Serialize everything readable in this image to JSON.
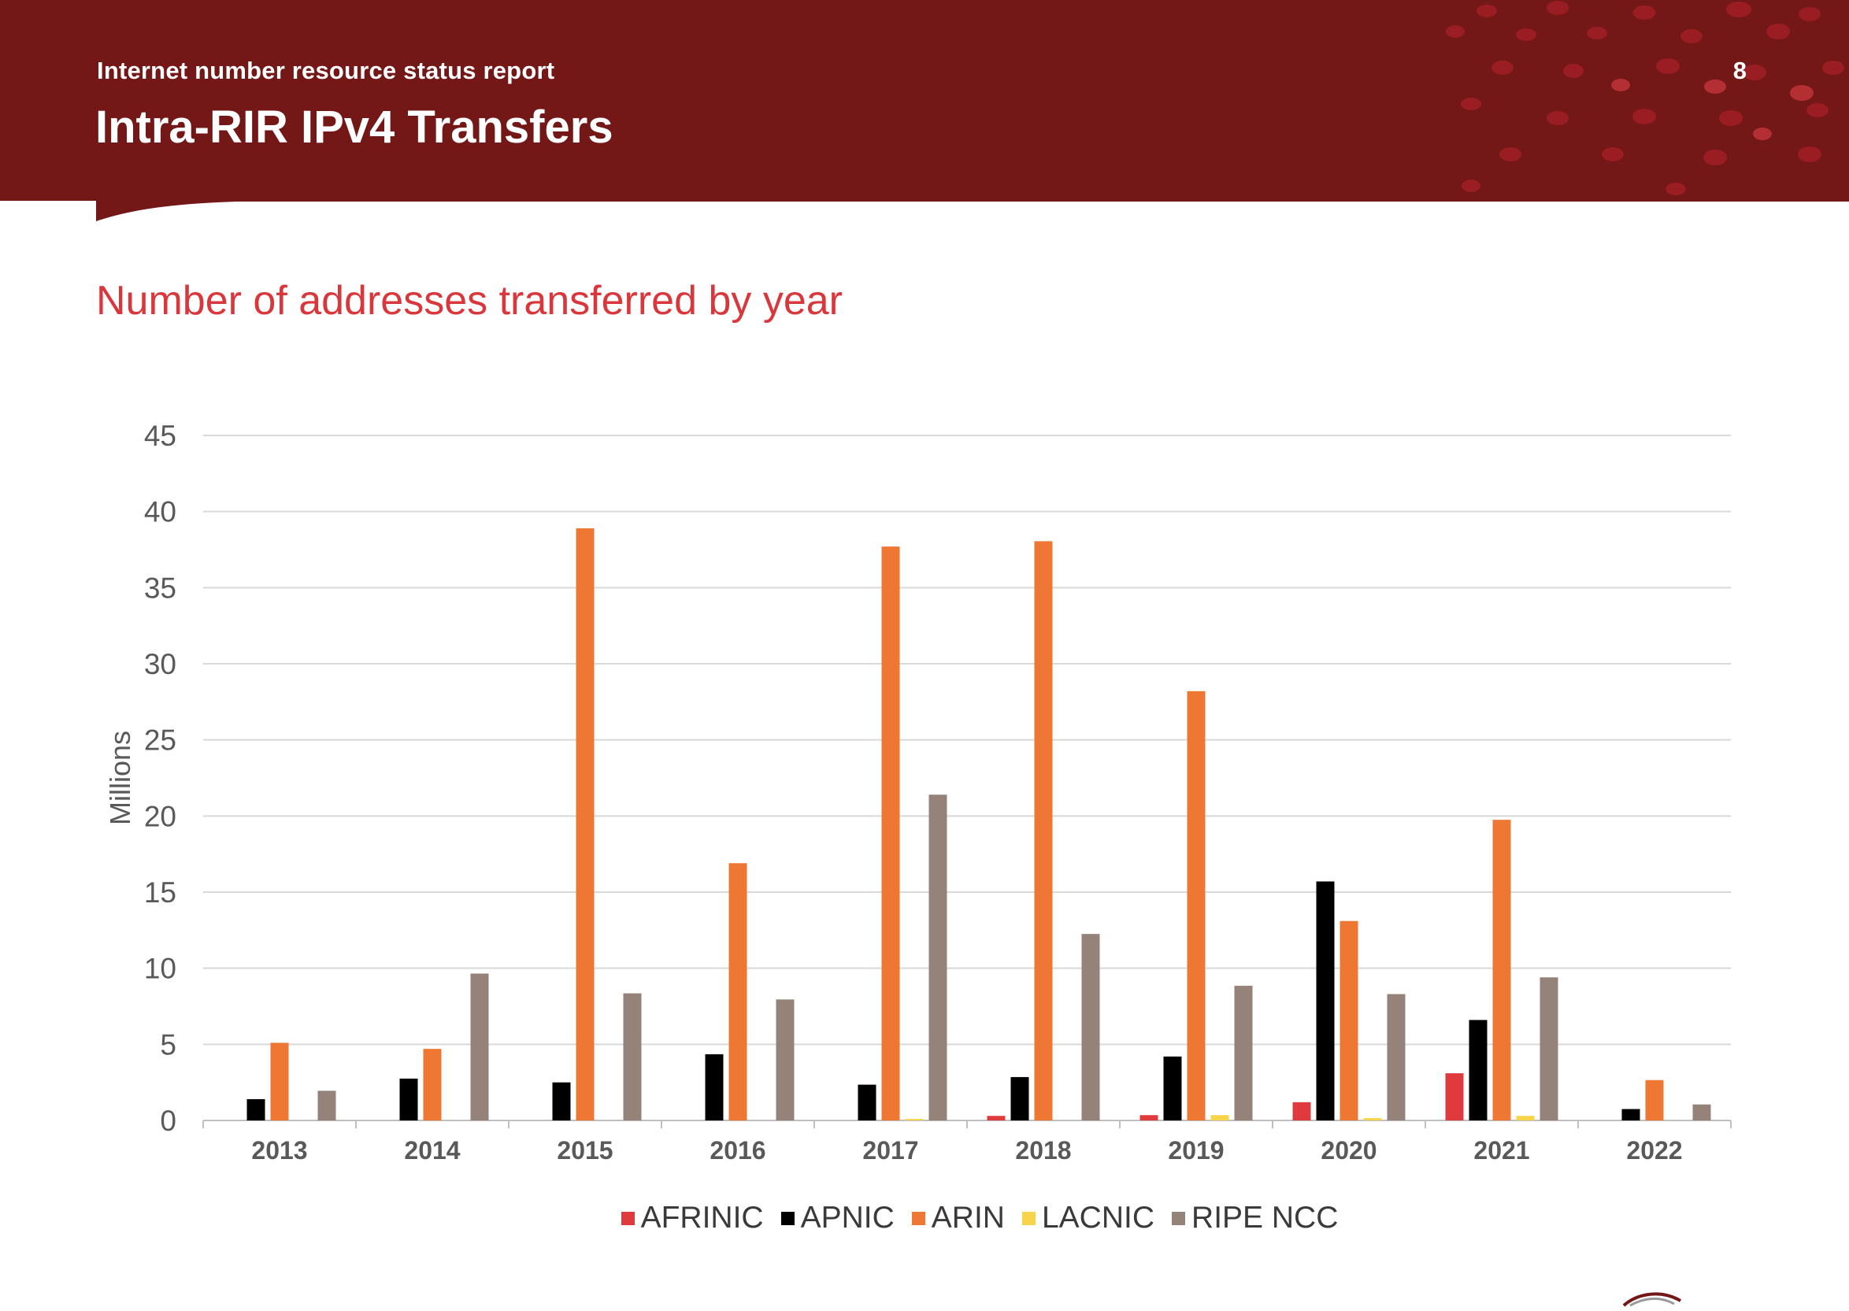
{
  "header": {
    "report_label": "Internet number resource status report",
    "page_number": "8",
    "title": "Intra-RIR IPv4 Transfers"
  },
  "section_title": "Number of addresses transferred by year",
  "colors": {
    "header_bg": "#731717",
    "section_title": "#d9373c",
    "AFRINIC": "#df3b3f",
    "APNIC": "#000000",
    "ARIN": "#ee7733",
    "LACNIC": "#f6d54a",
    "RIPE NCC": "#958279"
  },
  "chart_data": {
    "type": "bar",
    "title": "Number of addresses transferred by year",
    "xlabel": "",
    "ylabel": "Millions",
    "ylim": [
      0,
      45
    ],
    "yticks": [
      0,
      5,
      10,
      15,
      20,
      25,
      30,
      35,
      40,
      45
    ],
    "grid": true,
    "legend_position": "bottom",
    "categories": [
      "2013",
      "2014",
      "2015",
      "2016",
      "2017",
      "2018",
      "2019",
      "2020",
      "2021",
      "2022"
    ],
    "series": [
      {
        "name": "AFRINIC",
        "values": [
          0,
          0,
          0,
          0,
          0,
          0.3,
          0.35,
          1.2,
          3.1,
          0
        ]
      },
      {
        "name": "APNIC",
        "values": [
          1.4,
          2.75,
          2.5,
          4.35,
          2.35,
          2.85,
          4.2,
          15.7,
          6.6,
          0.75
        ]
      },
      {
        "name": "ARIN",
        "values": [
          5.1,
          4.7,
          38.9,
          16.9,
          37.7,
          38.05,
          28.2,
          13.1,
          19.75,
          2.65
        ]
      },
      {
        "name": "LACNIC",
        "values": [
          0,
          0,
          0,
          0,
          0.1,
          0,
          0.35,
          0.15,
          0.3,
          0
        ]
      },
      {
        "name": "RIPE NCC",
        "values": [
          1.95,
          9.65,
          8.35,
          7.95,
          21.4,
          12.25,
          8.85,
          8.3,
          9.4,
          1.05
        ]
      }
    ]
  }
}
